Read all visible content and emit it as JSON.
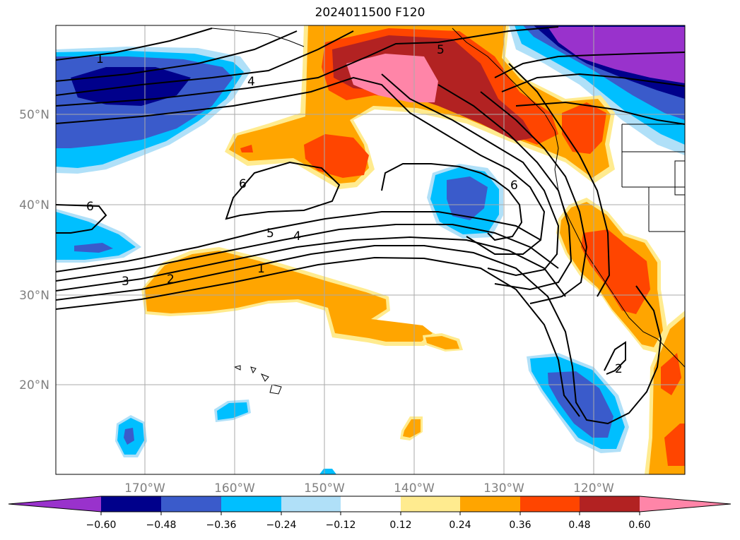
{
  "title": "2024011500 F120",
  "map": {
    "lat_labels": [
      "50°N",
      "40°N",
      "30°N",
      "20°N"
    ],
    "lon_labels": [
      "170°W",
      "160°W",
      "150°W",
      "140°W",
      "130°W",
      "120°W"
    ],
    "contour_labels": [
      "1",
      "4",
      "5",
      "6",
      "6",
      "6",
      "5",
      "4",
      "3",
      "2",
      "1",
      "2"
    ],
    "palette": {
      "purple": "#9932CC",
      "navy": "#00008B",
      "royal": "#3A5BCB",
      "sky": "#00BFFF",
      "pale_blue": "#B0E0F8",
      "white": "#FFFFFF",
      "pale_yellow": "#FFEB8F",
      "orange": "#FFA500",
      "red_orange": "#FF4500",
      "dark_red": "#B22222",
      "pink": "#FF85A8"
    }
  },
  "colorbar": {
    "ticks": [
      "−0.60",
      "−0.48",
      "−0.36",
      "−0.24",
      "−0.12",
      "0.12",
      "0.24",
      "0.36",
      "0.48",
      "0.60"
    ]
  }
}
